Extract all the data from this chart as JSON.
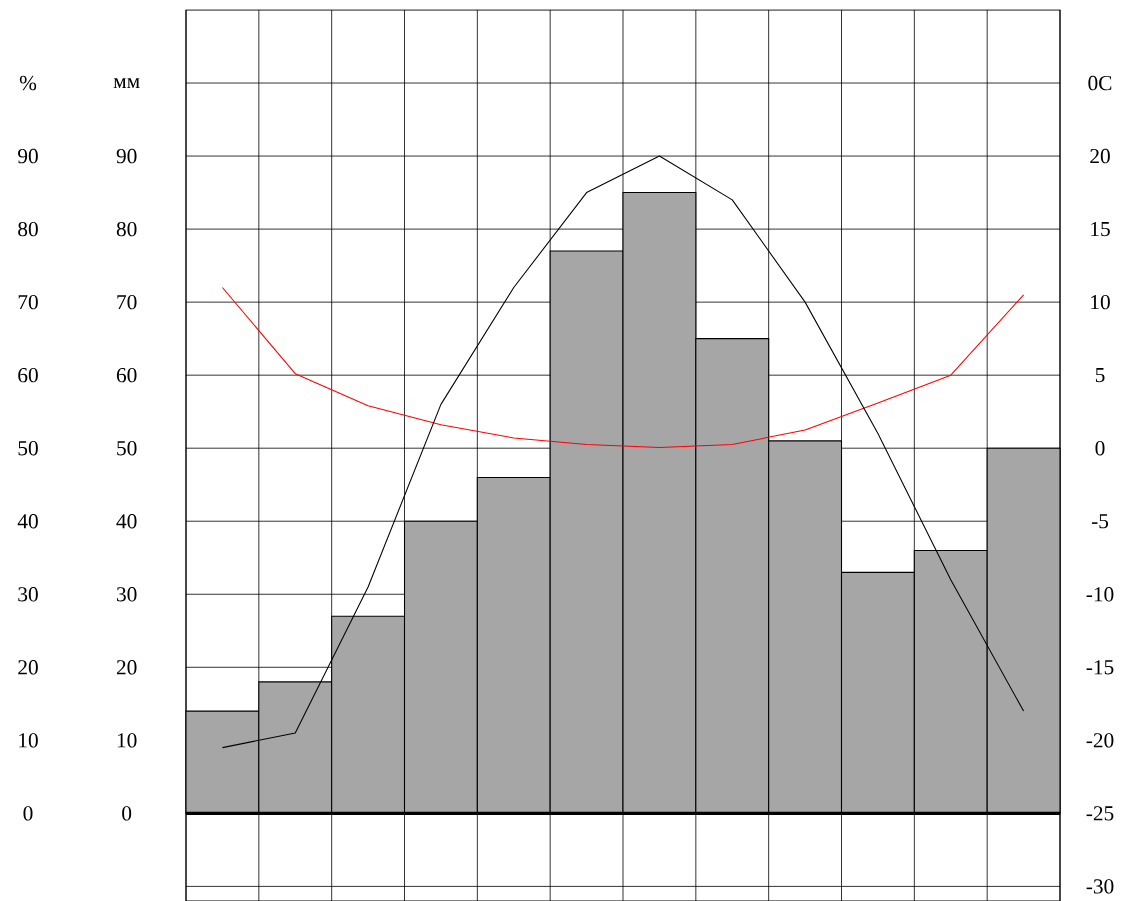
{
  "chart_data": {
    "type": "bar",
    "categories": [
      null,
      null,
      null,
      null,
      null,
      null,
      null,
      null,
      null,
      null,
      null,
      null
    ],
    "ylabel": "мм",
    "y3label": "%",
    "y2label": "0C",
    "series": [
      {
        "color": "#a6a6a6",
        "values": [
          14,
          18,
          27,
          40,
          46,
          77,
          85,
          65,
          51,
          33,
          36,
          50
        ]
      },
      {
        "type": "line",
        "axis": "y2",
        "color": "#000000",
        "values": [
          -20.5,
          -19.5,
          -9.5,
          3,
          11,
          17.5,
          20,
          17,
          10,
          1,
          -9,
          -18
        ]
      },
      {
        "type": "line",
        "axis": "y3",
        "color": "#ff0000",
        "values": [
          72,
          60.2,
          55.8,
          53.2,
          51.4,
          50.5,
          50.1,
          50.5,
          52.5,
          56.2,
          60,
          71
        ]
      }
    ],
    "ylim": [
      -12,
      110
    ],
    "yticks": [
      {
        "value": -10,
        "label": null
      },
      0,
      10,
      20,
      30,
      40,
      50,
      60,
      70,
      80,
      90,
      {
        "value": 100,
        "label": null
      }
    ],
    "y3lim": [
      -12,
      110
    ],
    "y3ticks": [
      0,
      10,
      20,
      30,
      40,
      50,
      60,
      70,
      80,
      90,
      {
        "value": 100,
        "label": null
      }
    ],
    "y2lim": [
      -31,
      30
    ],
    "y2ticks": [
      -30,
      -25,
      -20,
      -15,
      -10,
      -5,
      0,
      5,
      10,
      15,
      20,
      {
        "value": 25,
        "label": null
      }
    ],
    "grid": true,
    "marker": "none",
    "line_style": "solid",
    "ref_lines": [
      {
        "axis": "y",
        "value": 0
      }
    ]
  }
}
